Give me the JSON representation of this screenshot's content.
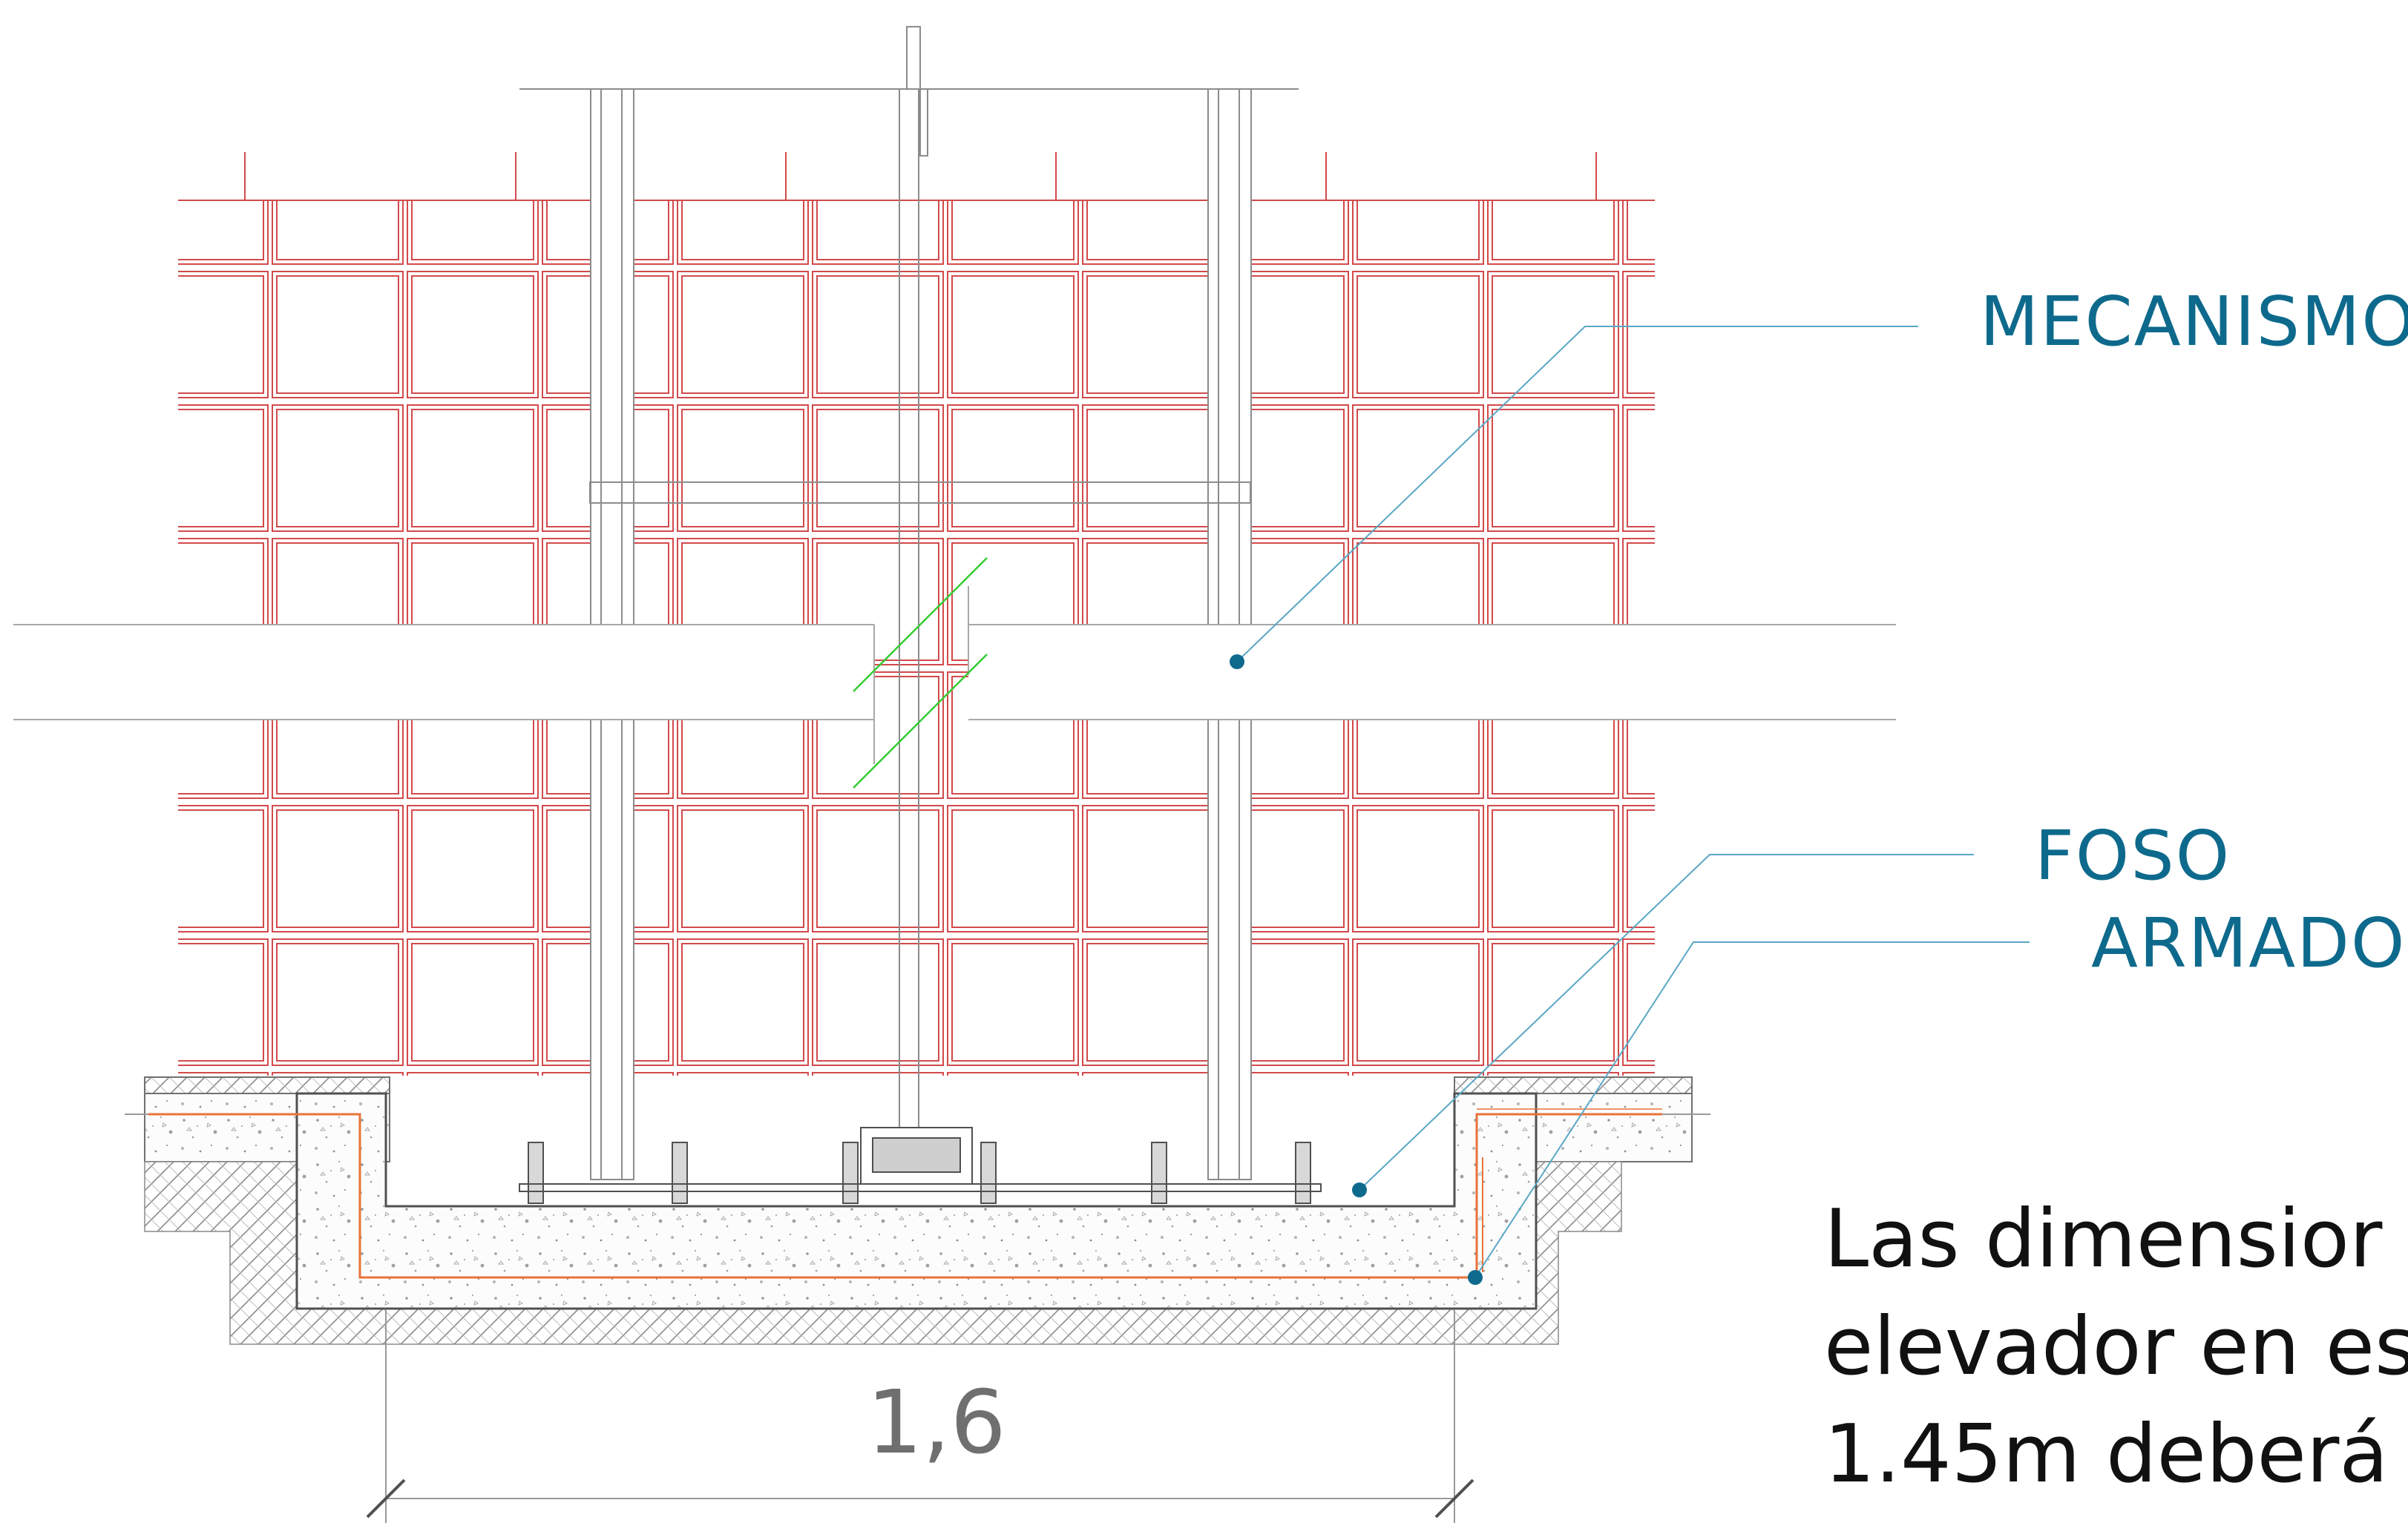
{
  "labels": {
    "mecanismo": "MECANISMO",
    "foso": "FOSO",
    "armado": "ARMADO"
  },
  "dimension": {
    "pit_width": "1,6"
  },
  "note": {
    "line1": "Las dimensior",
    "line2": "elevador en es",
    "line3": "1.45m deberá"
  },
  "colors": {
    "callout_text": "#0e6a8c",
    "brick_line": "#c9383c",
    "rebar": "#e8733a",
    "break_mark": "#33cc33",
    "leader_line": "#5aa7c4"
  }
}
